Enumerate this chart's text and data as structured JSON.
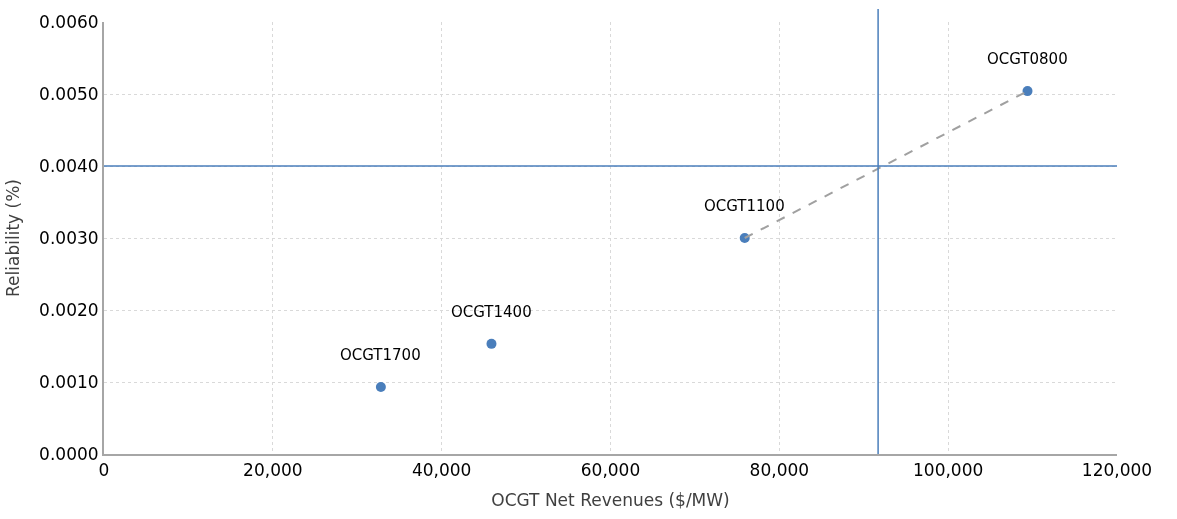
{
  "chart_data": {
    "type": "scatter",
    "xlabel": "OCGT Net Revenues ($/MW)",
    "ylabel": "Reliability (%)",
    "xlim": [
      0,
      120000
    ],
    "xticks": [
      {
        "value": 0,
        "label": "0"
      },
      {
        "value": 20000,
        "label": "20,000"
      },
      {
        "value": 40000,
        "label": "40,000"
      },
      {
        "value": 60000,
        "label": "60,000"
      },
      {
        "value": 80000,
        "label": "80,000"
      },
      {
        "value": 100000,
        "label": "100,000"
      },
      {
        "value": 120000,
        "label": "120,000"
      }
    ],
    "ylim": [
      0,
      0.006
    ],
    "yticks": [
      {
        "value": 0,
        "label": "0.0000"
      },
      {
        "value": 0.001,
        "label": "0.0010"
      },
      {
        "value": 0.002,
        "label": "0.0020"
      },
      {
        "value": 0.003,
        "label": "0.0030"
      },
      {
        "value": 0.004,
        "label": "0.0040"
      },
      {
        "value": 0.005,
        "label": "0.0050"
      },
      {
        "value": 0.006,
        "label": "0.0060"
      }
    ],
    "grid": true,
    "marker": "circle",
    "series": [
      {
        "color": "#4a7ebb",
        "x": [
          32800,
          45900,
          75900,
          109400
        ],
        "values": [
          0.00093,
          0.00153,
          0.003,
          0.00504
        ]
      },
      {
        "type": "line",
        "color": "#a0a0a0",
        "line_style": "dashed",
        "marker": "none",
        "x": [
          75900,
          109400
        ],
        "values": [
          0.003,
          0.00504
        ]
      }
    ],
    "annotations": [
      {
        "text": "OCGT1700",
        "x": 32800,
        "y": 0.00093
      },
      {
        "text": "OCGT1400",
        "x": 45900,
        "y": 0.00153
      },
      {
        "text": "OCGT1100",
        "x": 75900,
        "y": 0.003
      },
      {
        "text": "OCGT0800",
        "x": 109400,
        "y": 0.00504
      }
    ],
    "ref_lines": [
      {
        "axis": "y",
        "value": 0.004,
        "color": "#4a7ebb"
      },
      {
        "axis": "x",
        "value": 91700,
        "color": "#4a7ebb"
      }
    ]
  }
}
